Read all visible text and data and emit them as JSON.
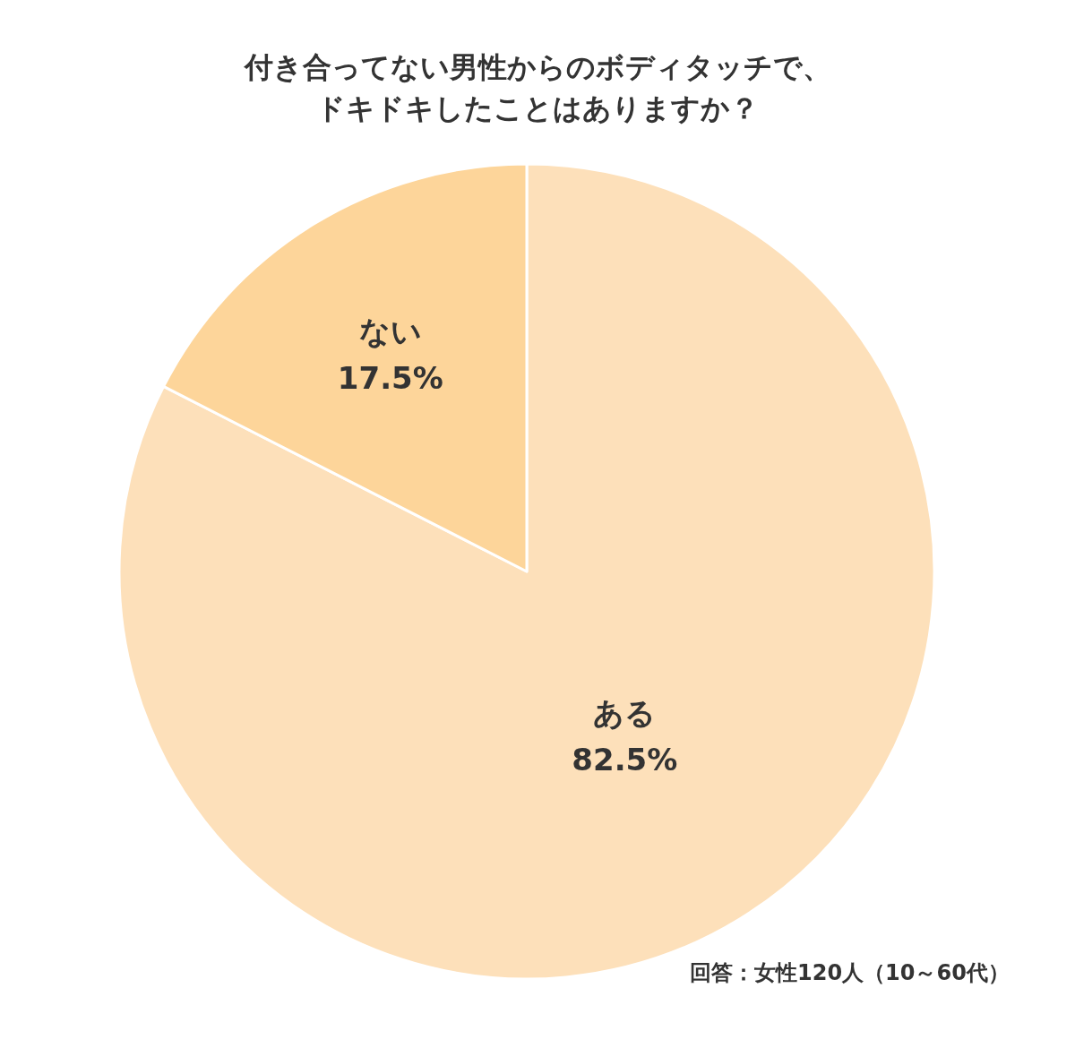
{
  "chart_data": {
    "type": "pie",
    "title": "付き合ってない男性からのボディタッチで、ドキドキしたことはありますか？",
    "categories": [
      "ある",
      "ない"
    ],
    "values": [
      82.5,
      17.5
    ],
    "value_labels": [
      "82.5%",
      "17.5%"
    ],
    "colors": [
      "#fde0ba",
      "#fdd59a"
    ],
    "annotations": [
      "回答：女性120人（10～60代）"
    ]
  }
}
